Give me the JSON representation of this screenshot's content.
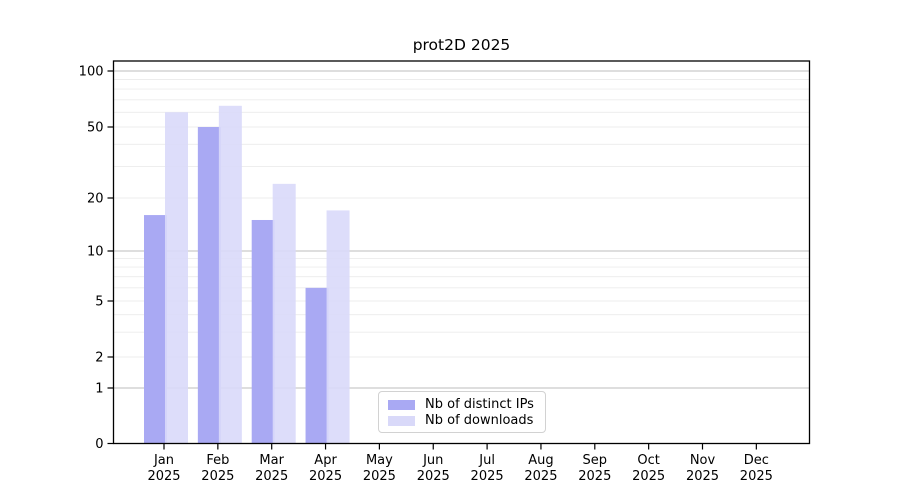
{
  "chart_data": {
    "type": "bar",
    "title": "prot2D 2025",
    "categories": [
      "Jan 2025",
      "Feb 2025",
      "Mar 2025",
      "Apr 2025",
      "May 2025",
      "Jun 2025",
      "Jul 2025",
      "Aug 2025",
      "Sep 2025",
      "Oct 2025",
      "Nov 2025",
      "Dec 2025"
    ],
    "series": [
      {
        "name": "Nb of distinct IPs",
        "color": "#a9a9f3",
        "values": [
          16,
          50,
          15,
          6,
          0,
          0,
          0,
          0,
          0,
          0,
          0,
          0
        ]
      },
      {
        "name": "Nb of downloads",
        "color": "#d9d9f9",
        "values": [
          60,
          65,
          24,
          17,
          0,
          0,
          0,
          0,
          0,
          0,
          0,
          0
        ]
      }
    ],
    "xlabel": "",
    "ylabel": "",
    "yscale": "symlog",
    "yticks": [
      0,
      1,
      2,
      5,
      10,
      20,
      50,
      100
    ],
    "ylim": [
      0,
      113
    ],
    "grid": "horizontal",
    "legend_position": "bottom-center"
  },
  "colors": {
    "axis": "#000000",
    "major_grid": "#bdbdbd",
    "minor_grid": "#ececec",
    "background": "#ffffff"
  }
}
